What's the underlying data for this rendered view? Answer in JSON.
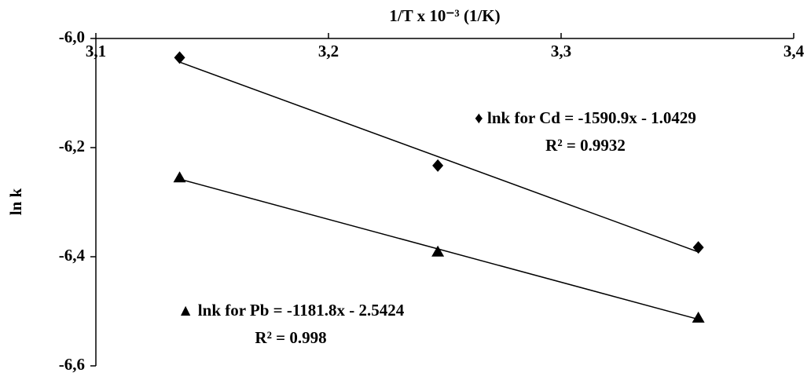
{
  "chart_data": {
    "type": "scatter",
    "x_label": "1/T x 10⁻³ (1/K)",
    "y_label": "ln k",
    "xlim": [
      3.1,
      3.4
    ],
    "xticks": [
      {
        "value": 3.1,
        "label": "3,1"
      },
      {
        "value": 3.2,
        "label": "3,2"
      },
      {
        "value": 3.3,
        "label": "3,3"
      },
      {
        "value": 3.4,
        "label": "3,4"
      }
    ],
    "ylim": [
      -6.6,
      -6.0
    ],
    "yticks": [
      {
        "value": -6.0,
        "label": "-6,0"
      },
      {
        "value": -6.2,
        "label": "-6,2"
      },
      {
        "value": -6.4,
        "label": "-6,4"
      },
      {
        "value": -6.6,
        "label": "-6,6"
      }
    ],
    "series": [
      {
        "name": "Cd",
        "marker": "diamond",
        "color": "#000000",
        "x": [
          3.136,
          3.247,
          3.359
        ],
        "values": [
          -6.035,
          -6.233,
          -6.383
        ]
      },
      {
        "name": "Pb",
        "marker": "triangle",
        "color": "#000000",
        "x": [
          3.136,
          3.247,
          3.359
        ],
        "values": [
          -6.255,
          -6.391,
          -6.512
        ]
      }
    ],
    "annotations": [
      "♦ lnk for Cd = -1590.9x - 1.0429",
      "R² = 0.9932",
      "▲ lnk for Pb = -1181.8x - 2.5424",
      "R² = 0.998"
    ]
  }
}
